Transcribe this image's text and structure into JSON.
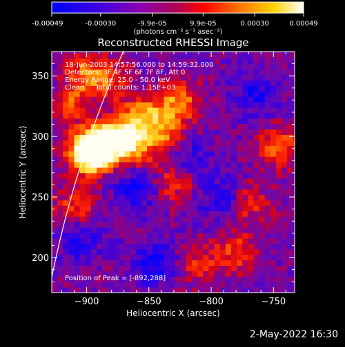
{
  "colorbar": {
    "tick_labels": [
      "-0.00049",
      "-0.00030",
      "-9.9e-05",
      "9.9e-05",
      "0.00030",
      "0.00049"
    ],
    "tick_values": [
      -0.00049,
      -0.0003,
      -9.9e-05,
      9.9e-05,
      0.0003,
      0.00049
    ],
    "unit_label": "(photons cm⁻² s⁻¹ asec⁻²)",
    "colors": [
      "#0000ff",
      "#5a00c8",
      "#9600a0",
      "#e00000",
      "#ff7800",
      "#ffd200",
      "#ffffff"
    ]
  },
  "chart_data": {
    "type": "heatmap",
    "title": "Reconstructed RHESSI Image",
    "xlabel": "Heliocentric X (arcsec)",
    "ylabel": "Heliocentric Y (arcsec)",
    "xlim": [
      -928,
      -733
    ],
    "ylim": [
      171,
      370
    ],
    "xticks": [
      -900,
      -850,
      -800,
      -750
    ],
    "yticks": [
      200,
      250,
      300,
      350
    ],
    "hotspots": [
      {
        "x": -890,
        "y": 292,
        "v": 1.0
      },
      {
        "x": -898,
        "y": 286,
        "v": 0.85
      },
      {
        "x": -872,
        "y": 300,
        "v": 0.55
      },
      {
        "x": -855,
        "y": 318,
        "v": 0.5
      },
      {
        "x": -860,
        "y": 290,
        "v": 0.45
      },
      {
        "x": -838,
        "y": 305,
        "v": 0.45
      },
      {
        "x": -826,
        "y": 330,
        "v": 0.5
      },
      {
        "x": -830,
        "y": 262,
        "v": 0.35
      },
      {
        "x": -910,
        "y": 240,
        "v": 0.35
      },
      {
        "x": -900,
        "y": 350,
        "v": 0.45
      },
      {
        "x": -915,
        "y": 325,
        "v": 0.35
      },
      {
        "x": -880,
        "y": 345,
        "v": 0.3
      },
      {
        "x": -745,
        "y": 292,
        "v": 0.45
      },
      {
        "x": -770,
        "y": 245,
        "v": 0.35
      },
      {
        "x": -780,
        "y": 205,
        "v": 0.35
      },
      {
        "x": -810,
        "y": 195,
        "v": 0.3
      }
    ],
    "coldspots": [
      {
        "x": -860,
        "y": 258,
        "v": 0.35
      },
      {
        "x": -790,
        "y": 250,
        "v": 0.3
      },
      {
        "x": -845,
        "y": 195,
        "v": 0.35
      },
      {
        "x": -765,
        "y": 335,
        "v": 0.3
      },
      {
        "x": -905,
        "y": 215,
        "v": 0.3
      },
      {
        "x": -815,
        "y": 280,
        "v": 0.25
      }
    ],
    "limb": {
      "r0": 946,
      "cx": -950,
      "cy": 0
    },
    "annotations": [
      "18-Jun-2003 14:57:56.000 to 14:59:32.000",
      "Detectors: 3F 4F 5F 6F 7F 8F, Att 0",
      "Energy Range: 25.0 - 50.0 keV",
      "Clean     Total counts: 1.15E+03"
    ],
    "peak_label": "Position of Peak = [-892,288]"
  },
  "footer": {
    "date_stamp": "2-May-2022 16:30"
  }
}
